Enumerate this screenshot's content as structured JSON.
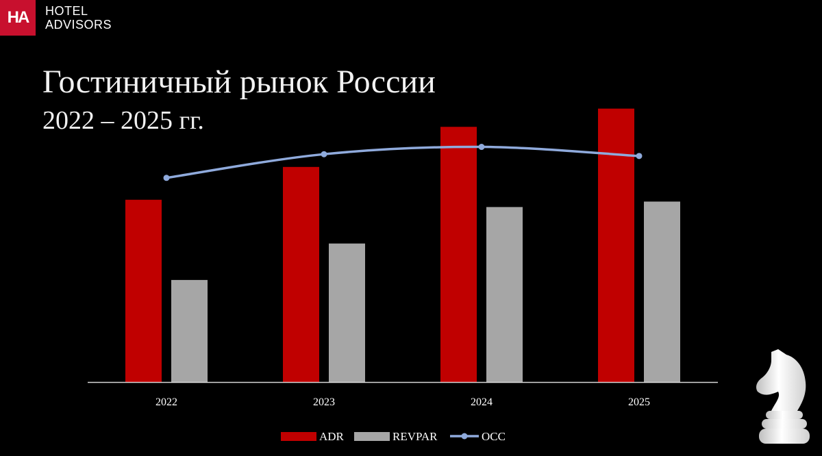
{
  "brand": {
    "logo_text": "HA",
    "line1": "HOTEL",
    "line2": "ADVISORS"
  },
  "title": "Гостиничный рынок России",
  "subtitle": "2022 – 2025 гг.",
  "chart_data": {
    "type": "bar",
    "categories": [
      "2022",
      "2023",
      "2024",
      "2025"
    ],
    "series": [
      {
        "name": "ADR",
        "type": "bar",
        "color": "#c00000",
        "values": [
          50,
          59,
          70,
          75
        ]
      },
      {
        "name": "REVPAR",
        "type": "bar",
        "color": "#a6a6a6",
        "values": [
          28,
          38,
          48,
          49.5
        ]
      },
      {
        "name": "OCC",
        "type": "line",
        "color": "#8faadc",
        "values": [
          56,
          62.5,
          64.5,
          62
        ]
      }
    ],
    "ylim": [
      0,
      80
    ],
    "grid": false,
    "legend": "bottom"
  },
  "colors": {
    "brand_red": "#c8102e",
    "background": "#000000"
  },
  "icons": {
    "decoration": "chess-knight-icon"
  }
}
